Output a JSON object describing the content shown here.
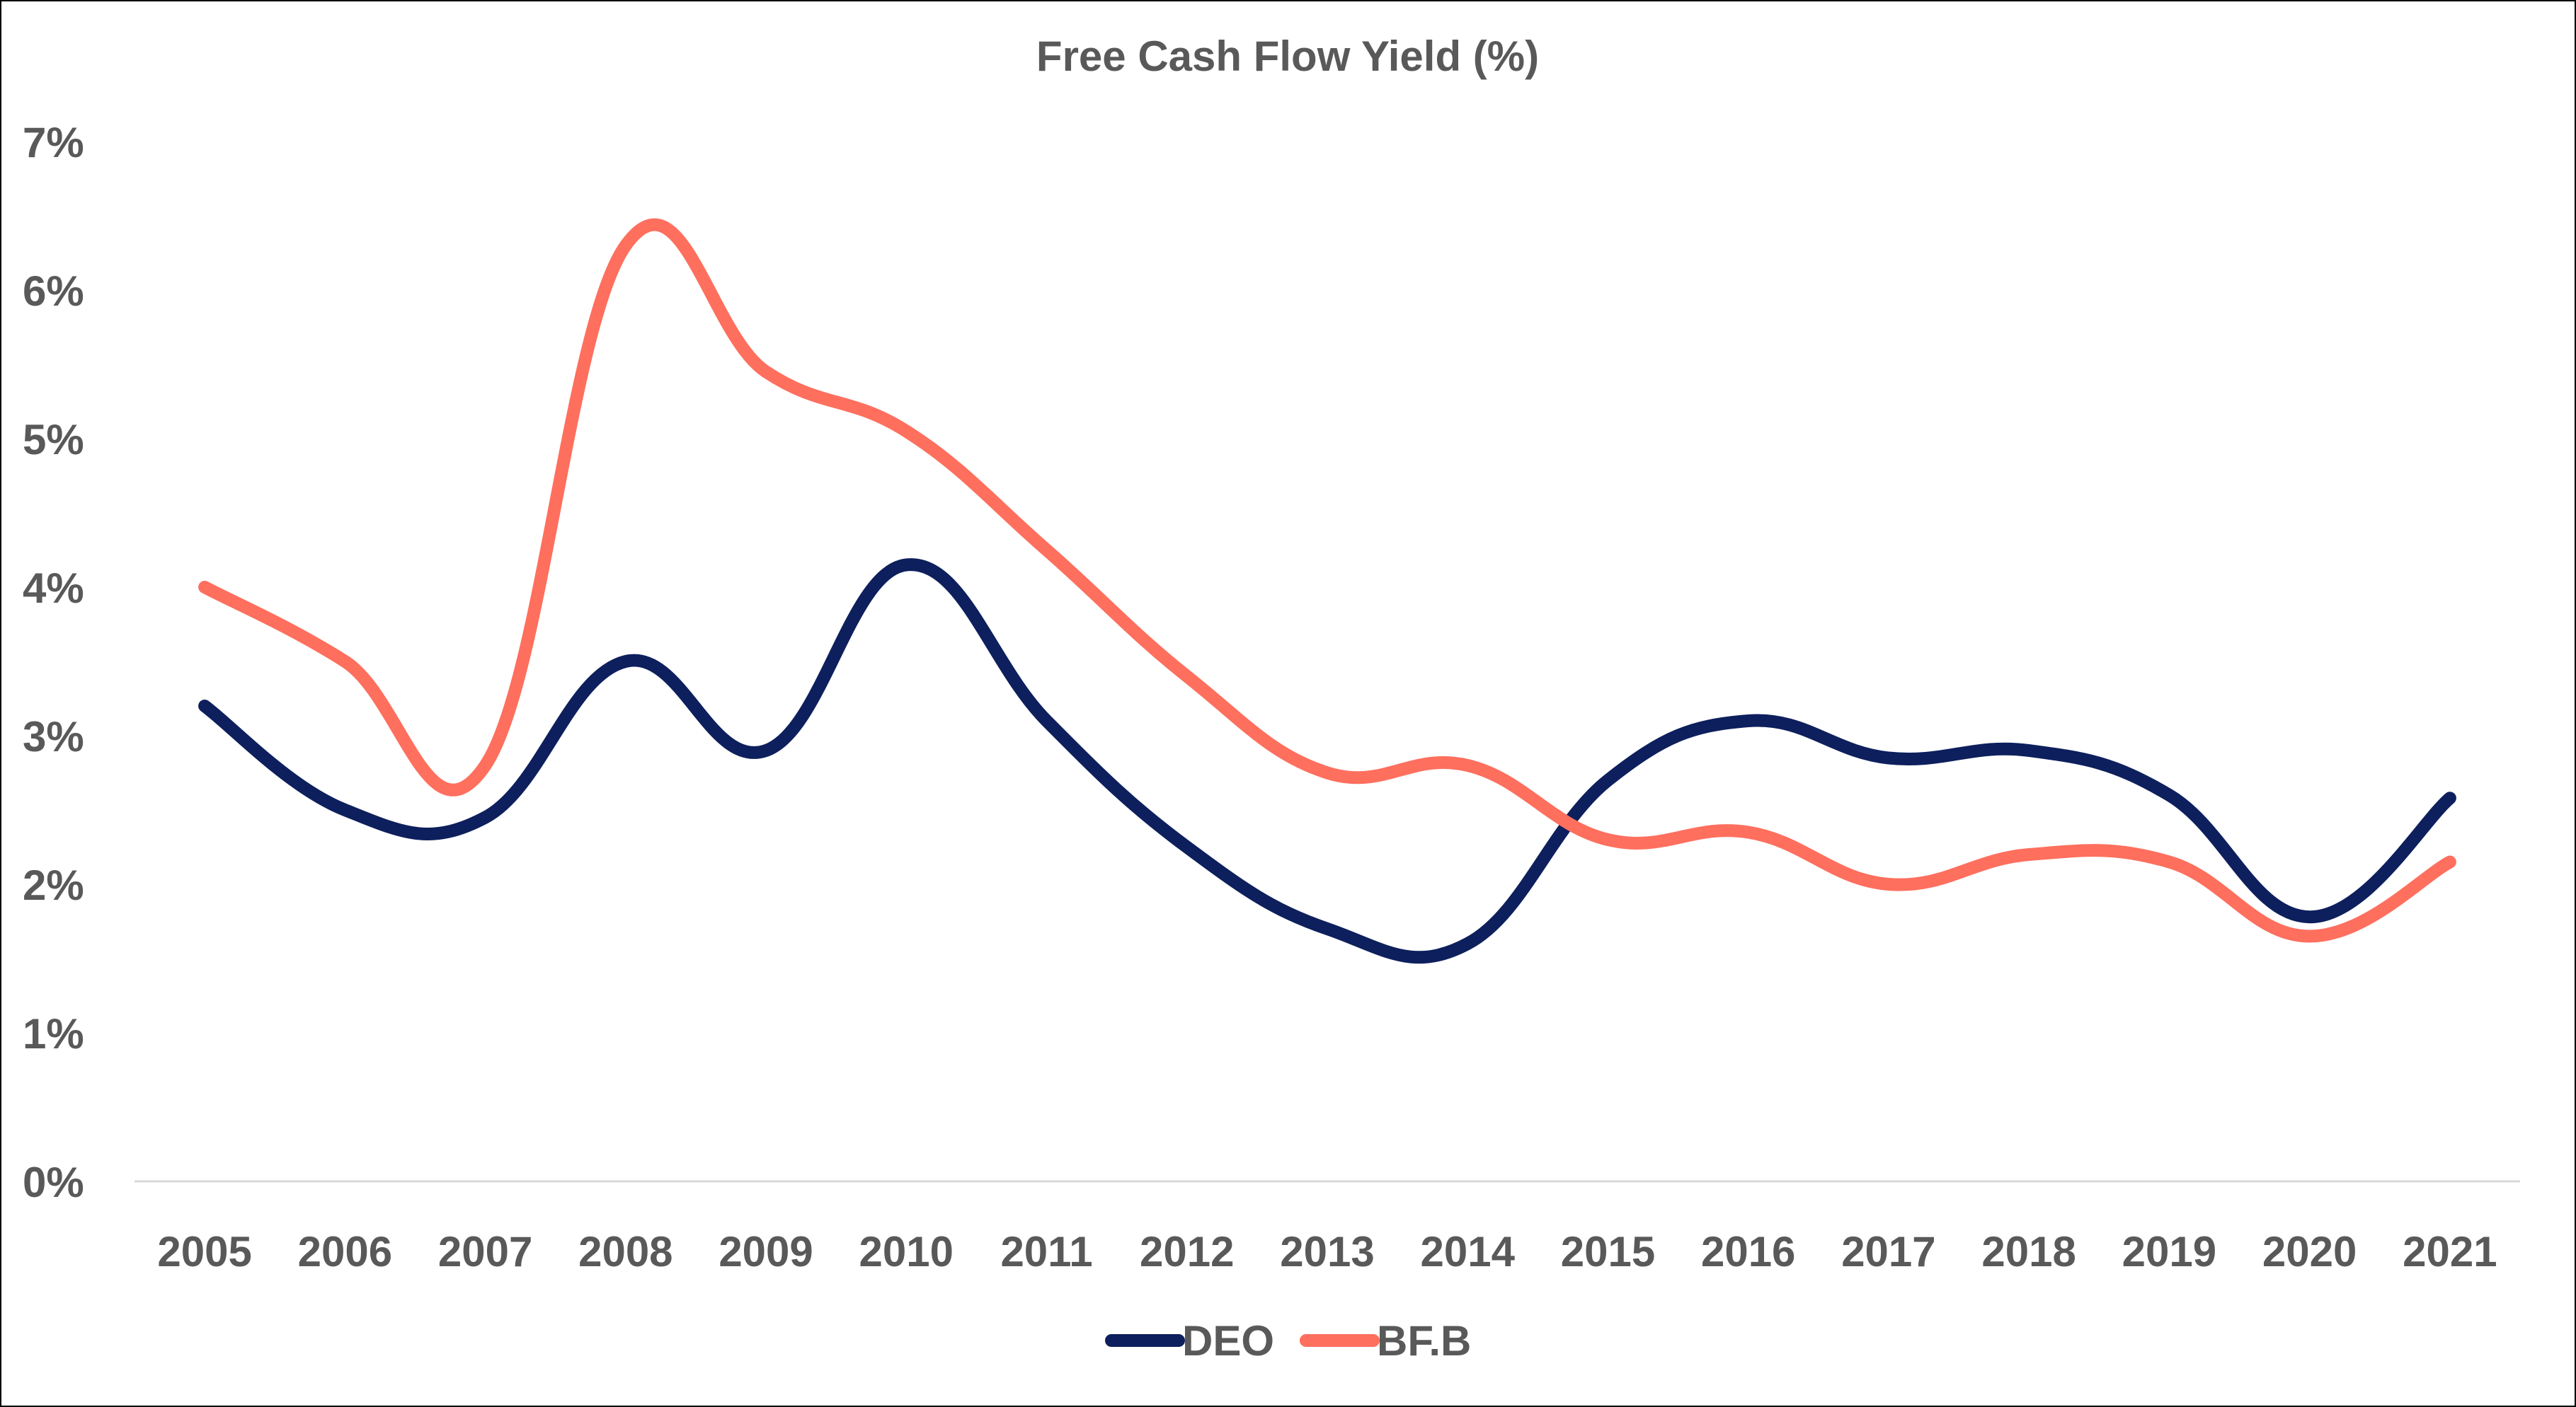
{
  "chart_data": {
    "type": "line",
    "title": "Free Cash Flow Yield (%)",
    "xlabel": "",
    "ylabel": "",
    "categories": [
      "2005",
      "2006",
      "2007",
      "2008",
      "2009",
      "2010",
      "2011",
      "2012",
      "2013",
      "2014",
      "2015",
      "2016",
      "2017",
      "2018",
      "2019",
      "2020",
      "2021"
    ],
    "ylim": [
      0,
      7
    ],
    "y_ticks": [
      0,
      1,
      2,
      3,
      4,
      5,
      6,
      7
    ],
    "y_tick_labels": [
      "0%",
      "1%",
      "2%",
      "3%",
      "4%",
      "5%",
      "6%",
      "7%"
    ],
    "grid": false,
    "smooth": true,
    "legend_position": "bottom",
    "series": [
      {
        "name": "DEO",
        "color": "#0d1f5c",
        "values": [
          3.2,
          2.5,
          2.45,
          3.5,
          2.9,
          4.15,
          3.1,
          2.25,
          1.7,
          1.6,
          2.7,
          3.1,
          2.85,
          2.9,
          2.6,
          1.78,
          2.58
        ]
      },
      {
        "name": "BF.B",
        "color": "#fe6f5e",
        "values": [
          4.0,
          3.5,
          2.8,
          6.3,
          5.45,
          5.05,
          4.25,
          3.4,
          2.75,
          2.8,
          2.3,
          2.35,
          2.0,
          2.2,
          2.15,
          1.65,
          2.15
        ]
      }
    ]
  }
}
